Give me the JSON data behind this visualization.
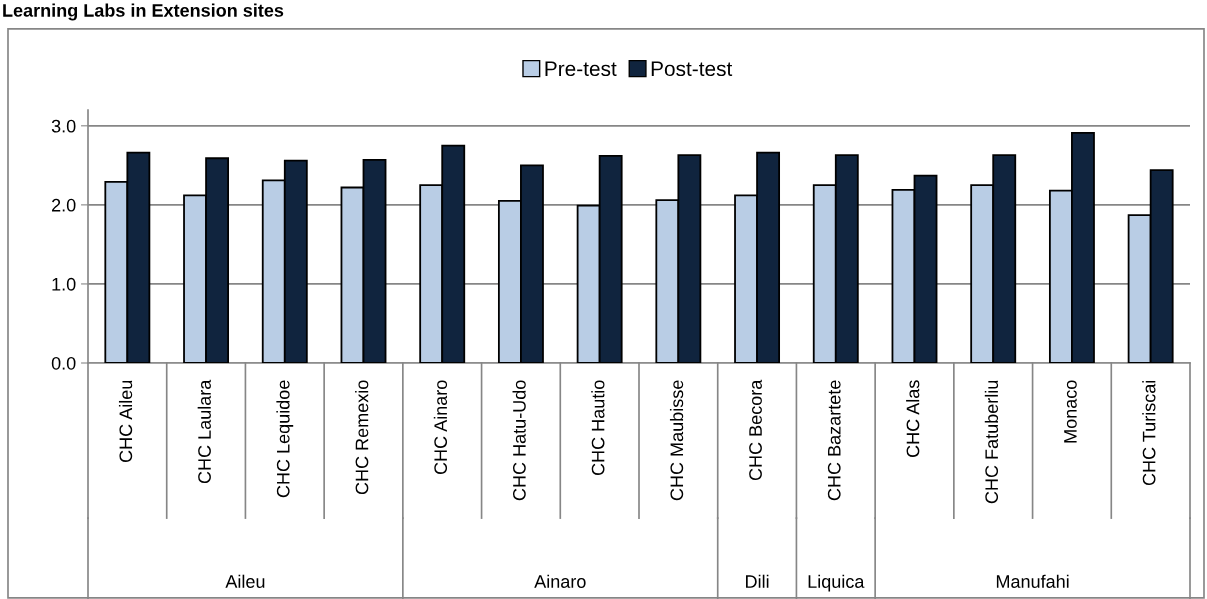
{
  "chart_data": {
    "type": "bar",
    "title": "Learning Labs in Extension sites",
    "categories": [
      "CHC Aileu",
      "CHC Laulara",
      "CHC Lequidoe",
      "CHC Remexio",
      "CHC Ainaro",
      "CHC Hatu-Udo",
      "CHC Hautio",
      "CHC Maubisse",
      "CHC Becora",
      "CHC Bazartete",
      "CHC Alas",
      "CHC Fatuberliu",
      "Monaco",
      "CHC Turiscai"
    ],
    "series": [
      {
        "name": "Pre-test",
        "color": "#b9cde5",
        "values": [
          2.29,
          2.12,
          2.31,
          2.22,
          2.25,
          2.05,
          1.99,
          2.06,
          2.12,
          2.25,
          2.19,
          2.25,
          2.18,
          1.87
        ]
      },
      {
        "name": "Post-test",
        "color": "#10243e",
        "values": [
          2.66,
          2.59,
          2.56,
          2.57,
          2.75,
          2.5,
          2.62,
          2.63,
          2.66,
          2.63,
          2.37,
          2.63,
          2.91,
          2.44
        ]
      }
    ],
    "annotations": [
      "Aileu",
      "Ainaro",
      "Dili",
      "Liquica",
      "Manufahi"
    ],
    "ylim": [
      0,
      3.2
    ],
    "yticks": [
      {
        "value": 0,
        "label": "0.0"
      },
      {
        "value": 1,
        "label": "1.0"
      },
      {
        "value": 2,
        "label": "2.0"
      },
      {
        "value": 3,
        "label": "3.0"
      }
    ],
    "grid": "y",
    "legend": "top"
  }
}
